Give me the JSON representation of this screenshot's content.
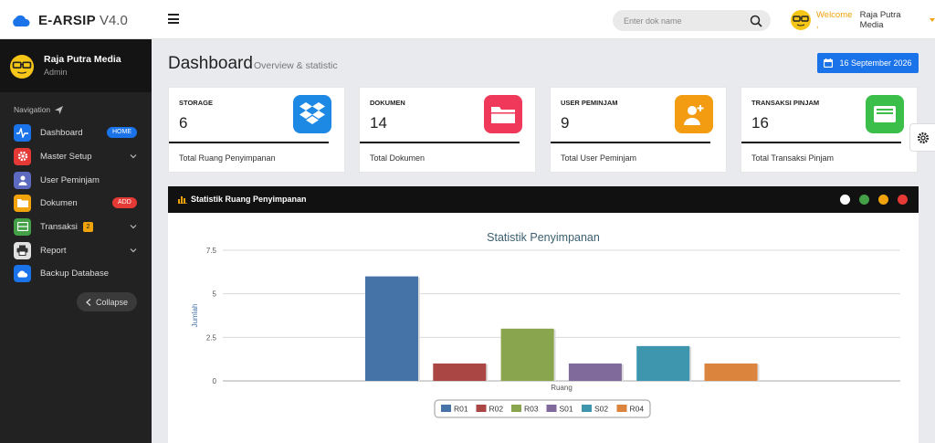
{
  "topbar": {
    "brand_name": "E-ARSIP",
    "brand_version": "V4.0",
    "search_placeholder": "Enter dok name",
    "welcome": "Welcome ,",
    "user_name": "Raja Putra Media"
  },
  "sidebar": {
    "profile_name": "Raja Putra Media",
    "profile_role": "Admin",
    "nav_title": "Navigation",
    "items": [
      {
        "label": "Dashboard",
        "icon": "pulse-icon",
        "color": "#1a73e8",
        "badge": "HOME"
      },
      {
        "label": "Master Setup",
        "icon": "gear-icon",
        "color": "#e53935",
        "chevron": true
      },
      {
        "label": "User Peminjam",
        "icon": "user-icon",
        "color": "#5c6bc0"
      },
      {
        "label": "Dokumen",
        "icon": "folder-icon",
        "color": "#f0a30a",
        "badge": "ADD"
      },
      {
        "label": "Transaksi",
        "icon": "inbox-icon",
        "color": "#43a047",
        "count": "2",
        "chevron": true
      },
      {
        "label": "Report",
        "icon": "printer-icon",
        "color": "#9e9e9e",
        "chevron": true
      },
      {
        "label": "Backup Database",
        "icon": "cloud-icon",
        "color": "#1a73e8"
      }
    ],
    "collapse_label": "Collapse"
  },
  "header": {
    "title": "Dashboard",
    "subtitle": "Overview & statistic",
    "date": "16 September 2026"
  },
  "cards": [
    {
      "title": "STORAGE",
      "value": "6",
      "footer": "Total Ruang Penyimpanan",
      "icon": "dropbox-icon",
      "color": "#1e88e5"
    },
    {
      "title": "DOKUMEN",
      "value": "14",
      "footer": "Total Dokumen",
      "icon": "folder-icon",
      "color": "#f0385a"
    },
    {
      "title": "USER PEMINJAM",
      "value": "9",
      "footer": "Total User Peminjam",
      "icon": "user-add-icon",
      "color": "#f39c12"
    },
    {
      "title": "TRANSAKSI PINJAM",
      "value": "16",
      "footer": "Total Transaksi Pinjam",
      "icon": "inbox-icon",
      "color": "#3cbe4a"
    }
  ],
  "panel": {
    "title": "Statistik Ruang Penyimpanan"
  },
  "chart_data": {
    "type": "bar",
    "title": "Statistik Penyimpanan",
    "xlabel": "Ruang",
    "ylabel": "Jumlah",
    "ylim": [
      0,
      7.5
    ],
    "yticks": [
      "0",
      "2.5",
      "5",
      "7.5"
    ],
    "grid": true,
    "legend": "bottom",
    "series": [
      {
        "name": "R01",
        "values": [
          6
        ],
        "color": "#4572a7"
      },
      {
        "name": "R02",
        "values": [
          1
        ],
        "color": "#aa4643"
      },
      {
        "name": "R03",
        "values": [
          3
        ],
        "color": "#89a54e"
      },
      {
        "name": "S01",
        "values": [
          1
        ],
        "color": "#80699b"
      },
      {
        "name": "S02",
        "values": [
          2
        ],
        "color": "#3d96ae"
      },
      {
        "name": "R04",
        "values": [
          1
        ],
        "color": "#db843d"
      }
    ]
  }
}
